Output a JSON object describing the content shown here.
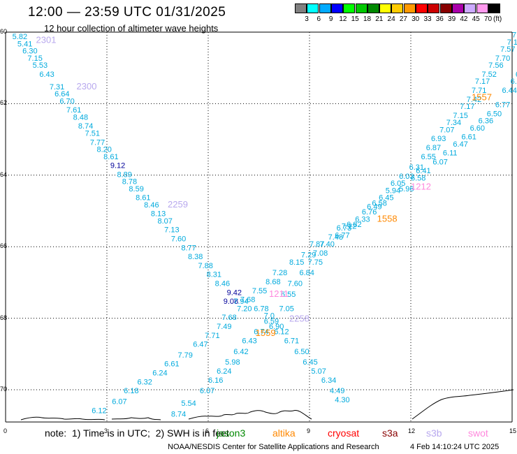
{
  "header": {
    "title": "12:00 — 23:59 UTC 01/31/2025",
    "subtitle": "12 hour collection of altimeter wave heights"
  },
  "legend": {
    "unit": "(ft)",
    "bins": [
      {
        "color": "#808080",
        "label": "3"
      },
      {
        "color": "#00ffff",
        "label": "6"
      },
      {
        "color": "#00aaff",
        "label": "9"
      },
      {
        "color": "#0000ff",
        "label": "12"
      },
      {
        "color": "#00ff00",
        "label": "15"
      },
      {
        "color": "#00c800",
        "label": "18"
      },
      {
        "color": "#008800",
        "label": "21"
      },
      {
        "color": "#ffff00",
        "label": "24"
      },
      {
        "color": "#ffcc00",
        "label": "27"
      },
      {
        "color": "#ff9900",
        "label": "30"
      },
      {
        "color": "#ff0000",
        "label": "33"
      },
      {
        "color": "#cc0000",
        "label": "36"
      },
      {
        "color": "#880000",
        "label": "39"
      },
      {
        "color": "#aa00aa",
        "label": "42"
      },
      {
        "color": "#ccaaff",
        "label": "45"
      },
      {
        "color": "#ff99ee",
        "label": "70"
      },
      {
        "color": "#000000",
        "label": ""
      }
    ]
  },
  "axes": {
    "x_ticks": [
      "0",
      "3",
      "6",
      "9",
      "12",
      "15"
    ],
    "y_ticks": [
      "-60",
      "-62",
      "-64",
      "-66",
      "-68",
      "-70"
    ]
  },
  "colors": {
    "wave_default": "#00aadd",
    "wave_high": "#000099",
    "jason3": "#008800",
    "altika": "#ff8800",
    "cryosat": "#ff0000",
    "s3a": "#880000",
    "s3b": "#b8a8ee",
    "swot": "#ff88dd"
  },
  "tracks": [
    {
      "label": "2301",
      "color": "#b8a8ee",
      "lon": 0.9,
      "lat": -60.3
    },
    {
      "label": "2300",
      "color": "#b8a8ee",
      "lon": 2.1,
      "lat": -61.6
    },
    {
      "label": "2259",
      "color": "#b8a8ee",
      "lon": 4.8,
      "lat": -64.9
    },
    {
      "label": "2258",
      "color": "#b8a8ee",
      "lon": 8.4,
      "lat": -68.1
    },
    {
      "label": "1559",
      "color": "#ff8800",
      "lon": 7.4,
      "lat": -68.5
    },
    {
      "label": "1558",
      "color": "#ff8800",
      "lon": 11.0,
      "lat": -65.3
    },
    {
      "label": "1557",
      "color": "#ff8800",
      "lon": 13.8,
      "lat": -61.9
    },
    {
      "label": "1212",
      "color": "#ff88dd",
      "lon": 12.0,
      "lat": -64.4
    },
    {
      "label": "1211",
      "color": "#ff88dd",
      "lon": 7.8,
      "lat": -67.4
    }
  ],
  "wave_labels": [
    {
      "t": "5.82",
      "lon": 0.2,
      "lat": -60.2
    },
    {
      "t": "5.41",
      "lon": 0.35,
      "lat": -60.4
    },
    {
      "t": "6.30",
      "lon": 0.5,
      "lat": -60.6
    },
    {
      "t": "7.15",
      "lon": 0.65,
      "lat": -60.8
    },
    {
      "t": "5.53",
      "lon": 0.8,
      "lat": -61.0
    },
    {
      "t": "6.43",
      "lon": 1.0,
      "lat": -61.25
    },
    {
      "t": "7.31",
      "lon": 1.3,
      "lat": -61.6
    },
    {
      "t": "6.64",
      "lon": 1.45,
      "lat": -61.8
    },
    {
      "t": "6.70",
      "lon": 1.6,
      "lat": -62.0
    },
    {
      "t": "7.61",
      "lon": 1.8,
      "lat": -62.25
    },
    {
      "t": "8.48",
      "lon": 2.0,
      "lat": -62.45
    },
    {
      "t": "8.74",
      "lon": 2.15,
      "lat": -62.7
    },
    {
      "t": "7.51",
      "lon": 2.35,
      "lat": -62.9
    },
    {
      "t": "7.77",
      "lon": 2.5,
      "lat": -63.15
    },
    {
      "t": "8.20",
      "lon": 2.7,
      "lat": -63.35
    },
    {
      "t": "8.61",
      "lon": 2.9,
      "lat": -63.55
    },
    {
      "t": "9.12",
      "lon": 3.1,
      "lat": -63.8,
      "c": "#000099"
    },
    {
      "t": "8.89",
      "lon": 3.3,
      "lat": -64.05
    },
    {
      "t": "8.78",
      "lon": 3.45,
      "lat": -64.25
    },
    {
      "t": "8.59",
      "lon": 3.65,
      "lat": -64.45
    },
    {
      "t": "8.61",
      "lon": 3.85,
      "lat": -64.7
    },
    {
      "t": "8.46",
      "lon": 4.1,
      "lat": -64.9
    },
    {
      "t": "8.13",
      "lon": 4.3,
      "lat": -65.15
    },
    {
      "t": "8.07",
      "lon": 4.5,
      "lat": -65.35
    },
    {
      "t": "7.13",
      "lon": 4.7,
      "lat": -65.6
    },
    {
      "t": "7.60",
      "lon": 4.9,
      "lat": -65.85
    },
    {
      "t": "8.77",
      "lon": 5.2,
      "lat": -66.1
    },
    {
      "t": "8.38",
      "lon": 5.4,
      "lat": -66.35
    },
    {
      "t": "7.88",
      "lon": 5.7,
      "lat": -66.6
    },
    {
      "t": "8.31",
      "lon": 5.95,
      "lat": -66.85
    },
    {
      "t": "8.46",
      "lon": 6.2,
      "lat": -67.1
    },
    {
      "t": "9.42",
      "lon": 6.55,
      "lat": -67.35,
      "c": "#000099"
    },
    {
      "t": "9.08",
      "lon": 6.45,
      "lat": -67.6,
      "c": "#000099"
    },
    {
      "t": "7.94",
      "lon": 6.75,
      "lat": -67.6
    },
    {
      "t": "7.68",
      "lon": 6.95,
      "lat": -67.55
    },
    {
      "t": "7.55",
      "lon": 7.3,
      "lat": -67.3
    },
    {
      "t": "8.68",
      "lon": 7.7,
      "lat": -67.05
    },
    {
      "t": "7.60",
      "lon": 8.35,
      "lat": -67.1
    },
    {
      "t": "6.55",
      "lon": 8.15,
      "lat": -67.4
    },
    {
      "t": "7.28",
      "lon": 7.9,
      "lat": -66.8
    },
    {
      "t": "6.84",
      "lon": 8.7,
      "lat": -66.8
    },
    {
      "t": "8.15",
      "lon": 8.4,
      "lat": -66.5
    },
    {
      "t": "7.75",
      "lon": 8.95,
      "lat": -66.5
    },
    {
      "t": "7.29",
      "lon": 8.75,
      "lat": -66.3
    },
    {
      "t": "7.08",
      "lon": 9.1,
      "lat": -66.25
    },
    {
      "t": "7.87",
      "lon": 9.0,
      "lat": -66.0
    },
    {
      "t": "7.40",
      "lon": 9.3,
      "lat": -66.0
    },
    {
      "t": "7.48",
      "lon": 9.55,
      "lat": -65.8
    },
    {
      "t": "6.77",
      "lon": 9.75,
      "lat": -65.75
    },
    {
      "t": "6.73",
      "lon": 9.8,
      "lat": -65.55
    },
    {
      "t": "7.22",
      "lon": 9.95,
      "lat": -65.5
    },
    {
      "t": "6.82",
      "lon": 10.1,
      "lat": -65.45
    },
    {
      "t": "6.33",
      "lon": 10.35,
      "lat": -65.3
    },
    {
      "t": "6.76",
      "lon": 10.55,
      "lat": -65.1
    },
    {
      "t": "6.49",
      "lon": 10.7,
      "lat": -64.95
    },
    {
      "t": "6.58",
      "lon": 10.85,
      "lat": -64.85
    },
    {
      "t": "6.45",
      "lon": 11.05,
      "lat": -64.7
    },
    {
      "t": "5.94",
      "lon": 11.25,
      "lat": -64.5
    },
    {
      "t": "6.05",
      "lon": 11.4,
      "lat": -64.3
    },
    {
      "t": "5.96",
      "lon": 11.65,
      "lat": -64.45
    },
    {
      "t": "6.03",
      "lon": 11.65,
      "lat": -64.1
    },
    {
      "t": "6.58",
      "lon": 12.0,
      "lat": -64.15
    },
    {
      "t": "6.31",
      "lon": 11.95,
      "lat": -63.85
    },
    {
      "t": "6.41",
      "lon": 12.15,
      "lat": -63.95
    },
    {
      "t": "6.55",
      "lon": 12.3,
      "lat": -63.55
    },
    {
      "t": "6.07",
      "lon": 12.65,
      "lat": -63.7
    },
    {
      "t": "6.87",
      "lon": 12.45,
      "lat": -63.3
    },
    {
      "t": "6.11",
      "lon": 12.95,
      "lat": -63.45
    },
    {
      "t": "6.93",
      "lon": 12.6,
      "lat": -63.05
    },
    {
      "t": "6.47",
      "lon": 13.25,
      "lat": -63.2
    },
    {
      "t": "7.07",
      "lon": 12.85,
      "lat": -62.8
    },
    {
      "t": "6.61",
      "lon": 13.5,
      "lat": -63.0
    },
    {
      "t": "7.34",
      "lon": 13.05,
      "lat": -62.6
    },
    {
      "t": "6.60",
      "lon": 13.75,
      "lat": -62.75
    },
    {
      "t": "7.15",
      "lon": 13.25,
      "lat": -62.4
    },
    {
      "t": "6.36",
      "lon": 14.0,
      "lat": -62.55
    },
    {
      "t": "7.17",
      "lon": 13.45,
      "lat": -62.15
    },
    {
      "t": "6.50",
      "lon": 14.25,
      "lat": -62.35
    },
    {
      "t": "7.42",
      "lon": 13.65,
      "lat": -61.95
    },
    {
      "t": "6.77",
      "lon": 14.5,
      "lat": -62.1
    },
    {
      "t": "7.71",
      "lon": 13.8,
      "lat": -61.7
    },
    {
      "t": "6.44",
      "lon": 14.7,
      "lat": -61.7
    },
    {
      "t": "7.17",
      "lon": 13.9,
      "lat": -61.45
    },
    {
      "t": "6.83",
      "lon": 14.95,
      "lat": -61.45
    },
    {
      "t": "7.52",
      "lon": 14.1,
      "lat": -61.25
    },
    {
      "t": "6.43",
      "lon": 15.1,
      "lat": -61.25
    },
    {
      "t": "7.56",
      "lon": 14.3,
      "lat": -61.0
    },
    {
      "t": "7.70",
      "lon": 14.5,
      "lat": -60.8
    },
    {
      "t": "7.57",
      "lon": 14.65,
      "lat": -60.55
    },
    {
      "t": "7.18",
      "lon": 14.85,
      "lat": -60.35
    },
    {
      "t": "7.92",
      "lon": 15.0,
      "lat": -60.15
    },
    {
      "t": "7.05",
      "lon": 8.1,
      "lat": -67.8
    },
    {
      "t": "6.78",
      "lon": 7.35,
      "lat": -67.8
    },
    {
      "t": "7.20",
      "lon": 6.85,
      "lat": -67.8
    },
    {
      "t": "7.68",
      "lon": 6.4,
      "lat": -68.05
    },
    {
      "t": "7.0",
      "lon": 7.65,
      "lat": -68.0
    },
    {
      "t": "6.59",
      "lon": 7.65,
      "lat": -68.15
    },
    {
      "t": "6.90",
      "lon": 7.8,
      "lat": -68.3
    },
    {
      "t": "6.74",
      "lon": 7.35,
      "lat": -68.45
    },
    {
      "t": "6.12",
      "lon": 7.95,
      "lat": -68.45
    },
    {
      "t": "7.49",
      "lon": 6.25,
      "lat": -68.3
    },
    {
      "t": "7.71",
      "lon": 5.9,
      "lat": -68.55
    },
    {
      "t": "6.43",
      "lon": 7.0,
      "lat": -68.7
    },
    {
      "t": "6.71",
      "lon": 8.25,
      "lat": -68.7
    },
    {
      "t": "6.47",
      "lon": 5.55,
      "lat": -68.8
    },
    {
      "t": "6.42",
      "lon": 6.75,
      "lat": -69.0
    },
    {
      "t": "6.50",
      "lon": 8.55,
      "lat": -69.0
    },
    {
      "t": "7.79",
      "lon": 5.1,
      "lat": -69.1
    },
    {
      "t": "5.98",
      "lon": 6.5,
      "lat": -69.3
    },
    {
      "t": "6.45",
      "lon": 8.8,
      "lat": -69.3
    },
    {
      "t": "6.61",
      "lon": 4.7,
      "lat": -69.35
    },
    {
      "t": "6.24",
      "lon": 6.25,
      "lat": -69.55
    },
    {
      "t": "5.07",
      "lon": 9.05,
      "lat": -69.55
    },
    {
      "t": "6.24",
      "lon": 4.35,
      "lat": -69.6
    },
    {
      "t": "6.16",
      "lon": 6.0,
      "lat": -69.8
    },
    {
      "t": "6.34",
      "lon": 9.35,
      "lat": -69.8
    },
    {
      "t": "6.32",
      "lon": 3.9,
      "lat": -69.85
    },
    {
      "t": "6.18",
      "lon": 3.5,
      "lat": -70.1
    },
    {
      "t": "6.07",
      "lon": 5.75,
      "lat": -70.1
    },
    {
      "t": "4.49",
      "lon": 9.6,
      "lat": -70.1
    },
    {
      "t": "6.07",
      "lon": 3.15,
      "lat": -70.4
    },
    {
      "t": "5.54",
      "lon": 5.2,
      "lat": -70.45
    },
    {
      "t": "4.30",
      "lon": 9.75,
      "lat": -70.35
    },
    {
      "t": "6.12",
      "lon": 2.55,
      "lat": -70.65
    },
    {
      "t": "8.74",
      "lon": 4.9,
      "lat": -70.75
    }
  ],
  "footer": {
    "note": "note:  1) Time is in UTC;  2) SWH is in feet",
    "satellites": [
      {
        "name": "jason3",
        "color": "#008800"
      },
      {
        "name": "altika",
        "color": "#ff8800"
      },
      {
        "name": "cryosat",
        "color": "#ff0000"
      },
      {
        "name": "s3a",
        "color": "#880000"
      },
      {
        "name": "s3b",
        "color": "#b8a8ee"
      },
      {
        "name": "swot",
        "color": "#ff88dd"
      }
    ],
    "credit": "NOAA/NESDIS Center for Satellite Applications and Research",
    "timestamp": "4 Feb 14:10:24 UTC 2025"
  }
}
